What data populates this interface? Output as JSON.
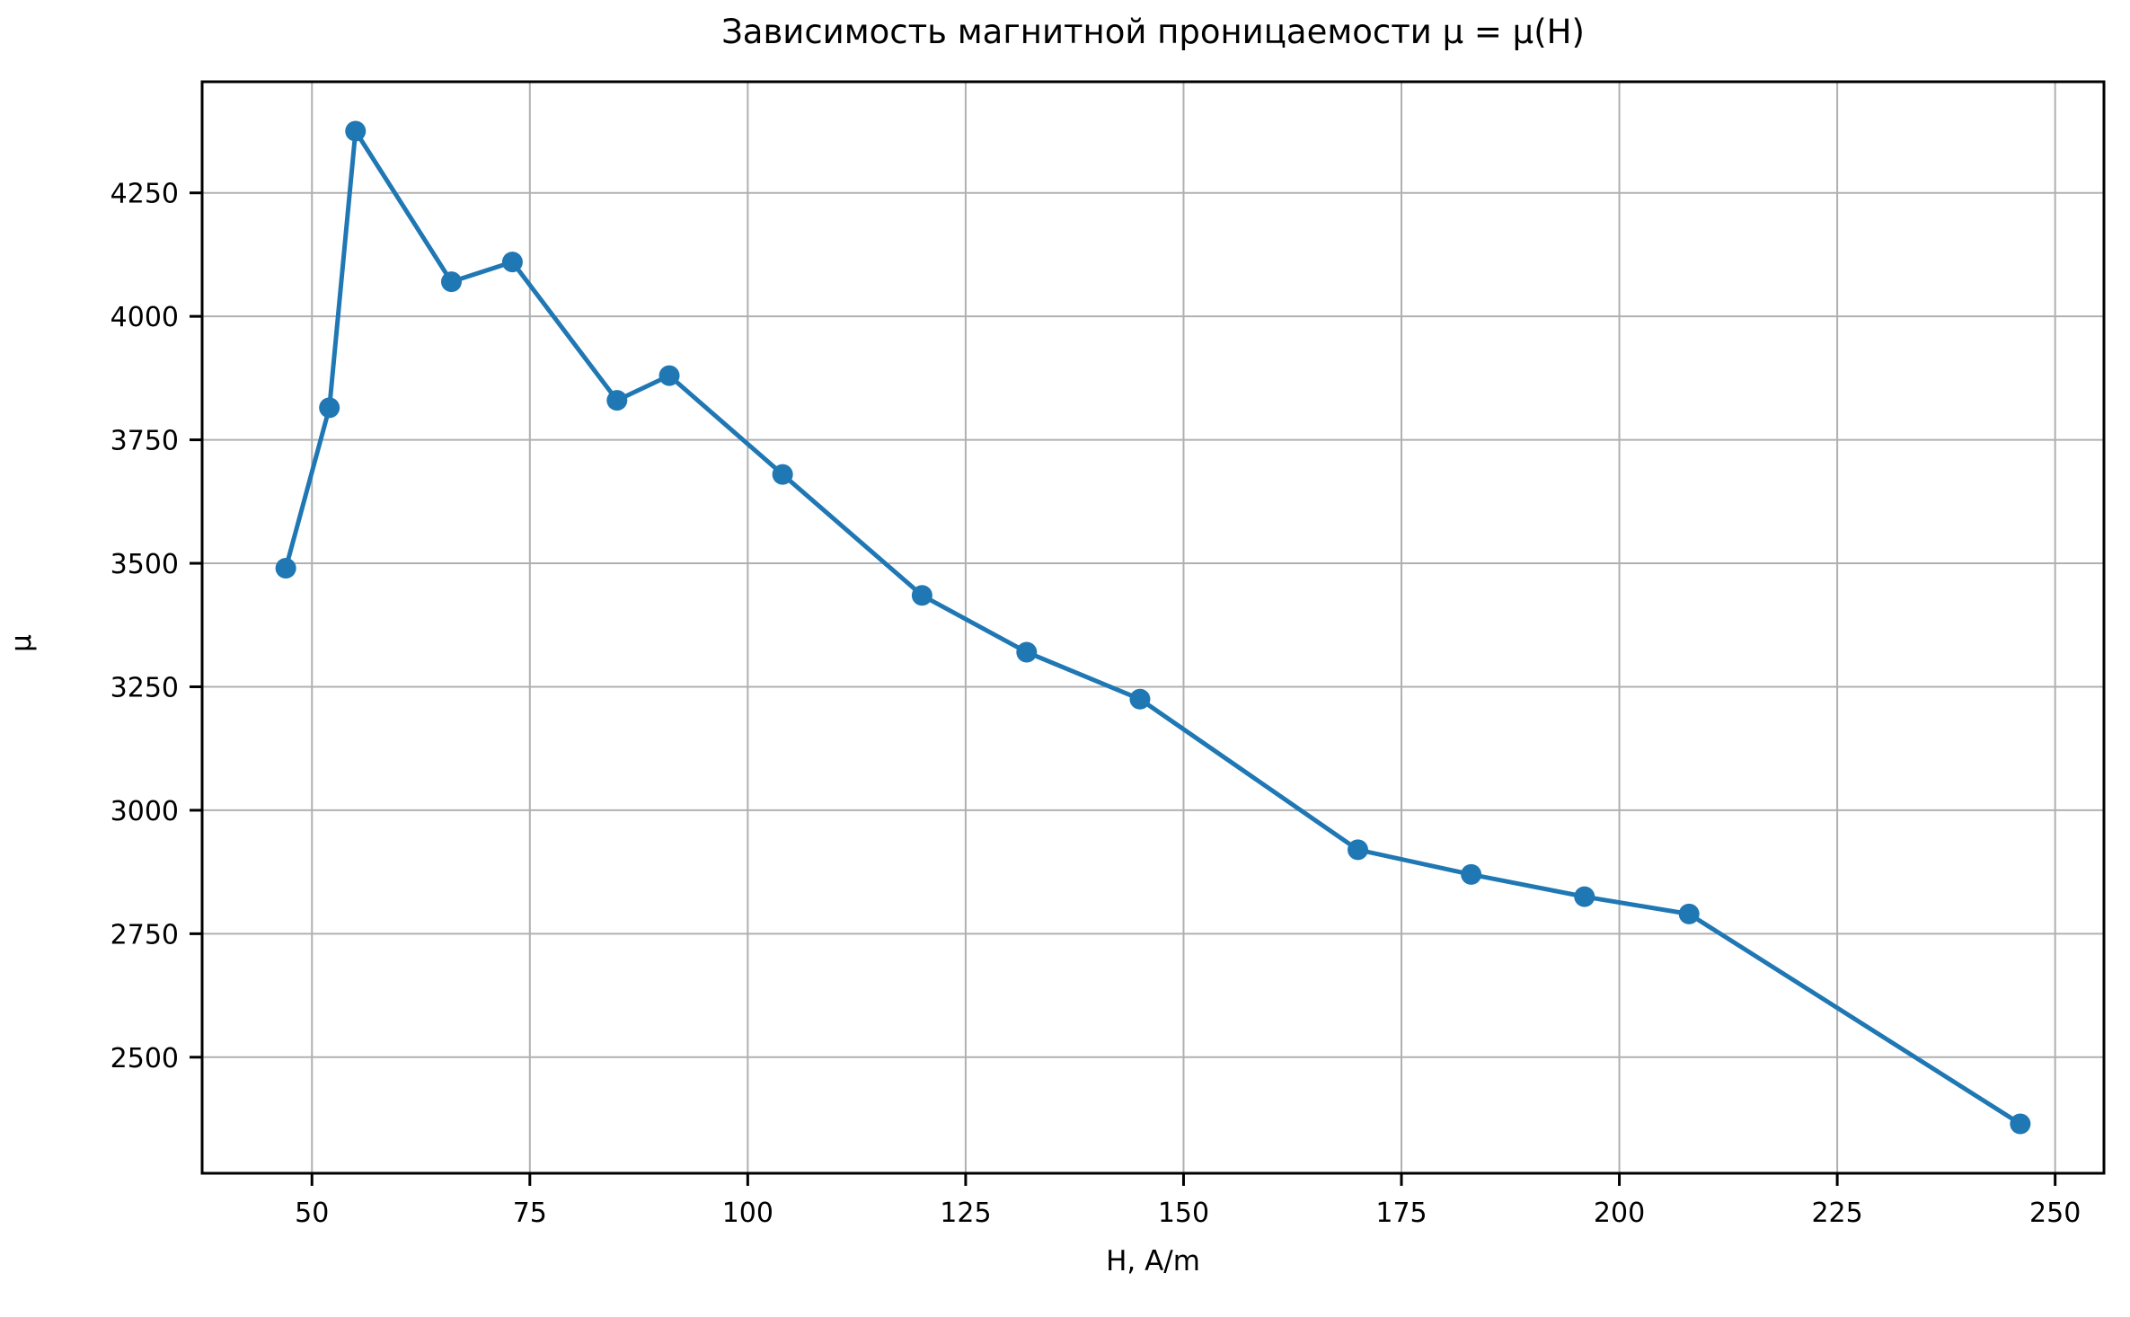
{
  "chart_data": {
    "type": "line",
    "title": "Зависимость магнитной проницаемости μ = μ(H)",
    "xlabel": "H, A/m",
    "ylabel": "μ",
    "series": [
      {
        "name": "μ(H)",
        "x": [
          47,
          52,
          55,
          66,
          73,
          85,
          91,
          104,
          120,
          132,
          145,
          170,
          183,
          196,
          208,
          246
        ],
        "y": [
          3490,
          3815,
          4375,
          4070,
          4110,
          3830,
          3880,
          3680,
          3435,
          3320,
          3225,
          2920,
          2870,
          2825,
          2790,
          2365
        ]
      }
    ],
    "xlim": [
      37.4,
      255.6
    ],
    "ylim": [
      2265,
      4475
    ],
    "xticks": [
      50,
      75,
      100,
      125,
      150,
      175,
      200,
      225,
      250
    ],
    "yticks": [
      2500,
      2750,
      3000,
      3250,
      3500,
      3750,
      4000,
      4250
    ],
    "grid": true,
    "legend": "none",
    "line_color": "#1f77b4",
    "marker_color": "#1f77b4",
    "grid_color": "#b0b0b0",
    "spine_color": "#000000",
    "background": "#ffffff",
    "marker": "o"
  }
}
